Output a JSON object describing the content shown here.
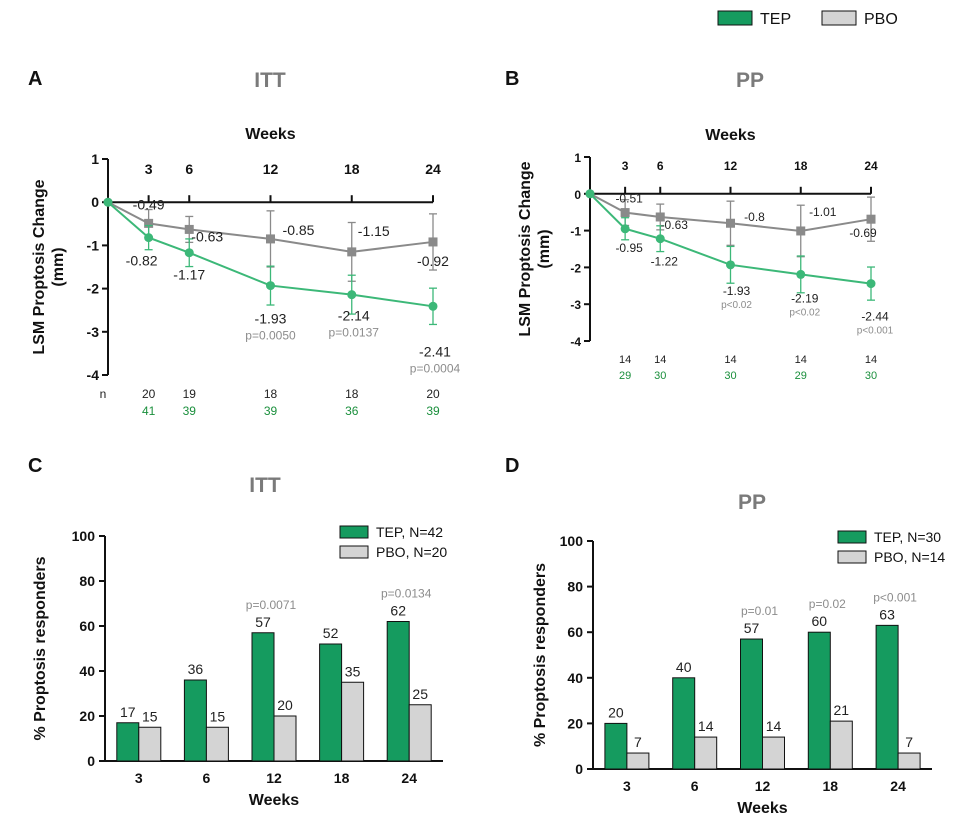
{
  "legend": {
    "tep_label": "TEP",
    "pbo_label": "PBO",
    "tep_color": "#159b5f",
    "pbo_color": "#d4d4d4"
  },
  "panels": {
    "A": {
      "letter": "A",
      "title": "ITT"
    },
    "B": {
      "letter": "B",
      "title": "PP"
    },
    "C": {
      "letter": "C",
      "title": "ITT"
    },
    "D": {
      "letter": "D",
      "title": "PP"
    }
  },
  "chart_data": [
    {
      "panel": "A",
      "type": "line",
      "title": "ITT",
      "xlabel": "Weeks",
      "ylabel": "LSM Proptosis Change (mm)",
      "x": [
        0,
        3,
        6,
        12,
        18,
        24
      ],
      "x_tick_labels": [
        "3",
        "6",
        "12",
        "18",
        "24"
      ],
      "ylim": [
        -4,
        1
      ],
      "y_ticks": [
        "1",
        "0",
        "-1",
        "-2",
        "-3",
        "-4"
      ],
      "series": [
        {
          "name": "TEP",
          "color": "#3cb878",
          "values": [
            0,
            -0.82,
            -1.17,
            -1.93,
            -2.14,
            -2.41
          ],
          "err": [
            0,
            0.28,
            0.32,
            0.45,
            0.45,
            0.42
          ],
          "labels": [
            "",
            "-0.82",
            "-1.17",
            "-1.93",
            "-2.14",
            "-2.41"
          ]
        },
        {
          "name": "PBO",
          "color": "#8a8a8a",
          "values": [
            0,
            -0.49,
            -0.63,
            -0.85,
            -1.15,
            -0.92
          ],
          "err": [
            0,
            0.32,
            0.3,
            0.65,
            0.68,
            0.65
          ],
          "labels": [
            "",
            "-0.49",
            "-0.63",
            "-0.85",
            "-1.15",
            "-0.92"
          ]
        }
      ],
      "p_values": [
        "",
        "",
        "",
        "p=0.0050",
        "p=0.0137",
        "p=0.0004"
      ],
      "n_label": "n",
      "n_pbo": [
        "20",
        "19",
        "18",
        "18",
        "20"
      ],
      "n_tep": [
        "41",
        "39",
        "39",
        "36",
        "39"
      ]
    },
    {
      "panel": "B",
      "type": "line",
      "title": "PP",
      "xlabel": "Weeks",
      "ylabel": "LSM Proptosis Change (mm)",
      "x": [
        0,
        3,
        6,
        12,
        18,
        24
      ],
      "x_tick_labels": [
        "3",
        "6",
        "12",
        "18",
        "24"
      ],
      "ylim": [
        -4,
        1
      ],
      "y_ticks": [
        "1",
        "0",
        "-1",
        "-2",
        "-3",
        "-4"
      ],
      "series": [
        {
          "name": "TEP",
          "color": "#3cb878",
          "values": [
            0,
            -0.95,
            -1.22,
            -1.93,
            -2.19,
            -2.44
          ],
          "err": [
            0,
            0.3,
            0.35,
            0.5,
            0.5,
            0.45
          ],
          "labels": [
            "",
            "-0.95",
            "-1.22",
            "-1.93",
            "-2.19",
            "-2.44"
          ]
        },
        {
          "name": "PBO",
          "color": "#8a8a8a",
          "values": [
            0,
            -0.51,
            -0.63,
            -0.8,
            -1.01,
            -0.69
          ],
          "err": [
            0,
            0.35,
            0.35,
            0.6,
            0.7,
            0.6
          ],
          "labels": [
            "",
            "-0.51",
            "-0.63",
            "-0.8",
            "-1.01",
            "-0.69"
          ]
        }
      ],
      "p_values": [
        "",
        "",
        "",
        "p<0.02",
        "p<0.02",
        "p<0.001"
      ],
      "n_label": "",
      "n_pbo": [
        "14",
        "14",
        "14",
        "14",
        "14"
      ],
      "n_tep": [
        "29",
        "30",
        "30",
        "29",
        "30"
      ]
    },
    {
      "panel": "C",
      "type": "bar",
      "title": "ITT",
      "xlabel": "Weeks",
      "ylabel": "% Proptosis responders",
      "categories": [
        "3",
        "6",
        "12",
        "18",
        "24"
      ],
      "ylim": [
        0,
        100
      ],
      "y_ticks": [
        "100",
        "80",
        "60",
        "40",
        "20",
        "0"
      ],
      "series": [
        {
          "name": "TEP, N=42",
          "color": "#159b5f",
          "values": [
            17,
            36,
            57,
            52,
            62
          ]
        },
        {
          "name": "PBO, N=20",
          "color": "#d4d4d4",
          "values": [
            15,
            15,
            20,
            35,
            25
          ]
        }
      ],
      "p_values": [
        "",
        "",
        "p=0.0071",
        "",
        "p=0.0134"
      ],
      "legend": "top-right"
    },
    {
      "panel": "D",
      "type": "bar",
      "title": "PP",
      "xlabel": "Weeks",
      "ylabel": "% Proptosis responders",
      "categories": [
        "3",
        "6",
        "12",
        "18",
        "24"
      ],
      "ylim": [
        0,
        100
      ],
      "y_ticks": [
        "100",
        "80",
        "60",
        "40",
        "20",
        "0"
      ],
      "series": [
        {
          "name": "TEP, N=30",
          "color": "#159b5f",
          "values": [
            20,
            40,
            57,
            60,
            63
          ]
        },
        {
          "name": "PBO, N=14",
          "color": "#d4d4d4",
          "values": [
            7,
            14,
            14,
            21,
            7
          ]
        }
      ],
      "p_values": [
        "",
        "",
        "p=0.01",
        "p=0.02",
        "p<0.001"
      ],
      "legend": "top-right"
    }
  ]
}
